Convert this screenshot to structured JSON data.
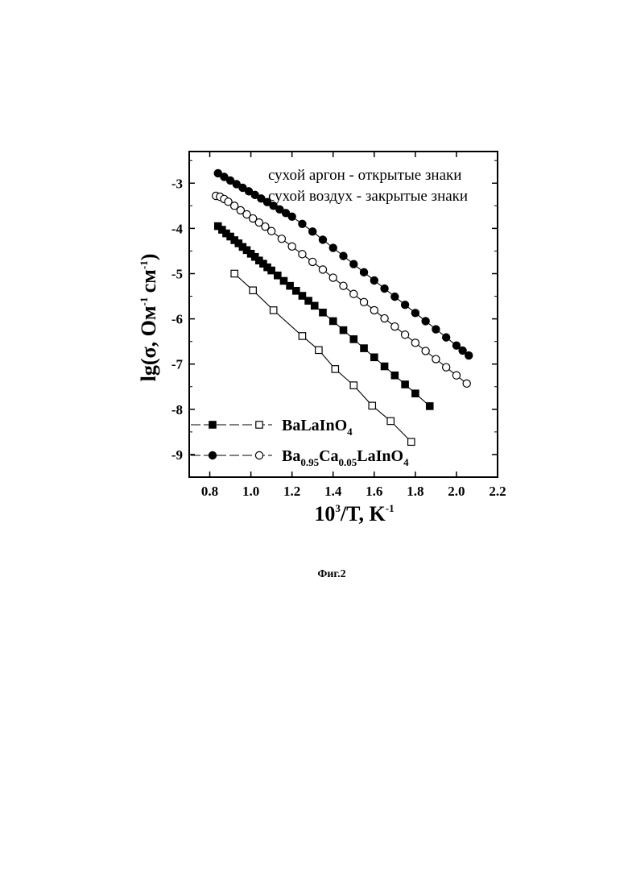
{
  "chart_data": {
    "type": "scatter",
    "title": "",
    "xlabel": {
      "base": "10",
      "sup1": "3",
      "mid": "/T, K",
      "sup2": "-1"
    },
    "ylabel": {
      "pre": "lg(σ, Ом",
      "sup1": "-1",
      "mid": "см",
      "sup2": "-1",
      "post": ")"
    },
    "xlim": [
      0.7,
      2.2
    ],
    "ylim": [
      -9.5,
      -2.3
    ],
    "x_ticks": [
      "0.8",
      "1.0",
      "1.2",
      "1.4",
      "1.6",
      "1.8",
      "2.0",
      "2.2"
    ],
    "x_tick_values": [
      0.8,
      1.0,
      1.2,
      1.4,
      1.6,
      1.8,
      2.0,
      2.2
    ],
    "y_ticks": [
      "-3",
      "-4",
      "-5",
      "-6",
      "-7",
      "-8",
      "-9"
    ],
    "y_tick_values": [
      -3,
      -4,
      -5,
      -6,
      -7,
      -8,
      -9
    ],
    "grid": false,
    "annotations": [
      "сухой аргон - открытые знаки",
      "сухой воздух - закрытые знаки"
    ],
    "legend": [
      {
        "label_parts": [
          [
            "BaLaInO",
            "n"
          ],
          [
            "4",
            "sub"
          ]
        ],
        "filled_marker": "square-filled",
        "open_marker": "square-open"
      },
      {
        "label_parts": [
          [
            "Ba",
            "n"
          ],
          [
            "0.95",
            "sub"
          ],
          [
            "Ca",
            "n"
          ],
          [
            "0.05",
            "sub"
          ],
          [
            "LaInO",
            "n"
          ],
          [
            "4",
            "sub"
          ]
        ],
        "filled_marker": "circle-filled",
        "open_marker": "circle-open"
      }
    ],
    "series": [
      {
        "name": "Ba0.95Ca0.05LaInO4 (сухой воздух)",
        "marker": "circle-filled",
        "x": [
          0.84,
          0.87,
          0.9,
          0.93,
          0.96,
          0.99,
          1.02,
          1.05,
          1.08,
          1.11,
          1.14,
          1.17,
          1.2,
          1.25,
          1.3,
          1.35,
          1.4,
          1.45,
          1.5,
          1.55,
          1.6,
          1.65,
          1.7,
          1.75,
          1.8,
          1.85,
          1.9,
          1.95,
          2.0,
          2.03,
          2.06
        ],
        "y": [
          -2.78,
          -2.86,
          -2.94,
          -3.02,
          -3.1,
          -3.18,
          -3.26,
          -3.34,
          -3.42,
          -3.5,
          -3.58,
          -3.66,
          -3.74,
          -3.9,
          -4.07,
          -4.25,
          -4.43,
          -4.61,
          -4.79,
          -4.97,
          -5.15,
          -5.33,
          -5.51,
          -5.69,
          -5.87,
          -6.05,
          -6.23,
          -6.41,
          -6.59,
          -6.7,
          -6.81
        ]
      },
      {
        "name": "Ba0.95Ca0.05LaInO4 (сухой аргон)",
        "marker": "circle-open",
        "x": [
          0.83,
          0.85,
          0.87,
          0.89,
          0.92,
          0.95,
          0.98,
          1.01,
          1.04,
          1.07,
          1.1,
          1.15,
          1.2,
          1.25,
          1.3,
          1.35,
          1.4,
          1.45,
          1.5,
          1.55,
          1.6,
          1.65,
          1.7,
          1.75,
          1.8,
          1.85,
          1.9,
          1.95,
          2.0,
          2.05
        ],
        "y": [
          -3.28,
          -3.3,
          -3.35,
          -3.41,
          -3.5,
          -3.6,
          -3.69,
          -3.78,
          -3.87,
          -3.96,
          -4.06,
          -4.23,
          -4.4,
          -4.57,
          -4.74,
          -4.91,
          -5.09,
          -5.27,
          -5.45,
          -5.63,
          -5.81,
          -5.99,
          -6.17,
          -6.35,
          -6.53,
          -6.71,
          -6.89,
          -7.07,
          -7.25,
          -7.43
        ]
      },
      {
        "name": "BaLaInO4 (сухой воздух)",
        "marker": "square-filled",
        "x": [
          0.84,
          0.86,
          0.88,
          0.9,
          0.92,
          0.94,
          0.96,
          0.98,
          1.0,
          1.02,
          1.04,
          1.06,
          1.08,
          1.1,
          1.13,
          1.16,
          1.19,
          1.22,
          1.25,
          1.28,
          1.31,
          1.35,
          1.4,
          1.45,
          1.5,
          1.55,
          1.6,
          1.65,
          1.7,
          1.75,
          1.8,
          1.87
        ],
        "y": [
          -3.95,
          -4.03,
          -4.11,
          -4.18,
          -4.26,
          -4.33,
          -4.41,
          -4.48,
          -4.56,
          -4.63,
          -4.71,
          -4.78,
          -4.86,
          -4.93,
          -5.04,
          -5.16,
          -5.27,
          -5.38,
          -5.49,
          -5.6,
          -5.71,
          -5.86,
          -6.05,
          -6.25,
          -6.45,
          -6.65,
          -6.85,
          -7.05,
          -7.25,
          -7.45,
          -7.65,
          -7.93
        ]
      },
      {
        "name": "BaLaInO4 (сухой аргон)",
        "marker": "square-open",
        "x": [
          0.92,
          1.01,
          1.11,
          1.25,
          1.33,
          1.41,
          1.5,
          1.59,
          1.68,
          1.78
        ],
        "y": [
          -5.0,
          -5.37,
          -5.81,
          -6.38,
          -6.69,
          -7.11,
          -7.47,
          -7.92,
          -8.26,
          -8.72
        ]
      }
    ]
  },
  "caption": "Фиг.2"
}
